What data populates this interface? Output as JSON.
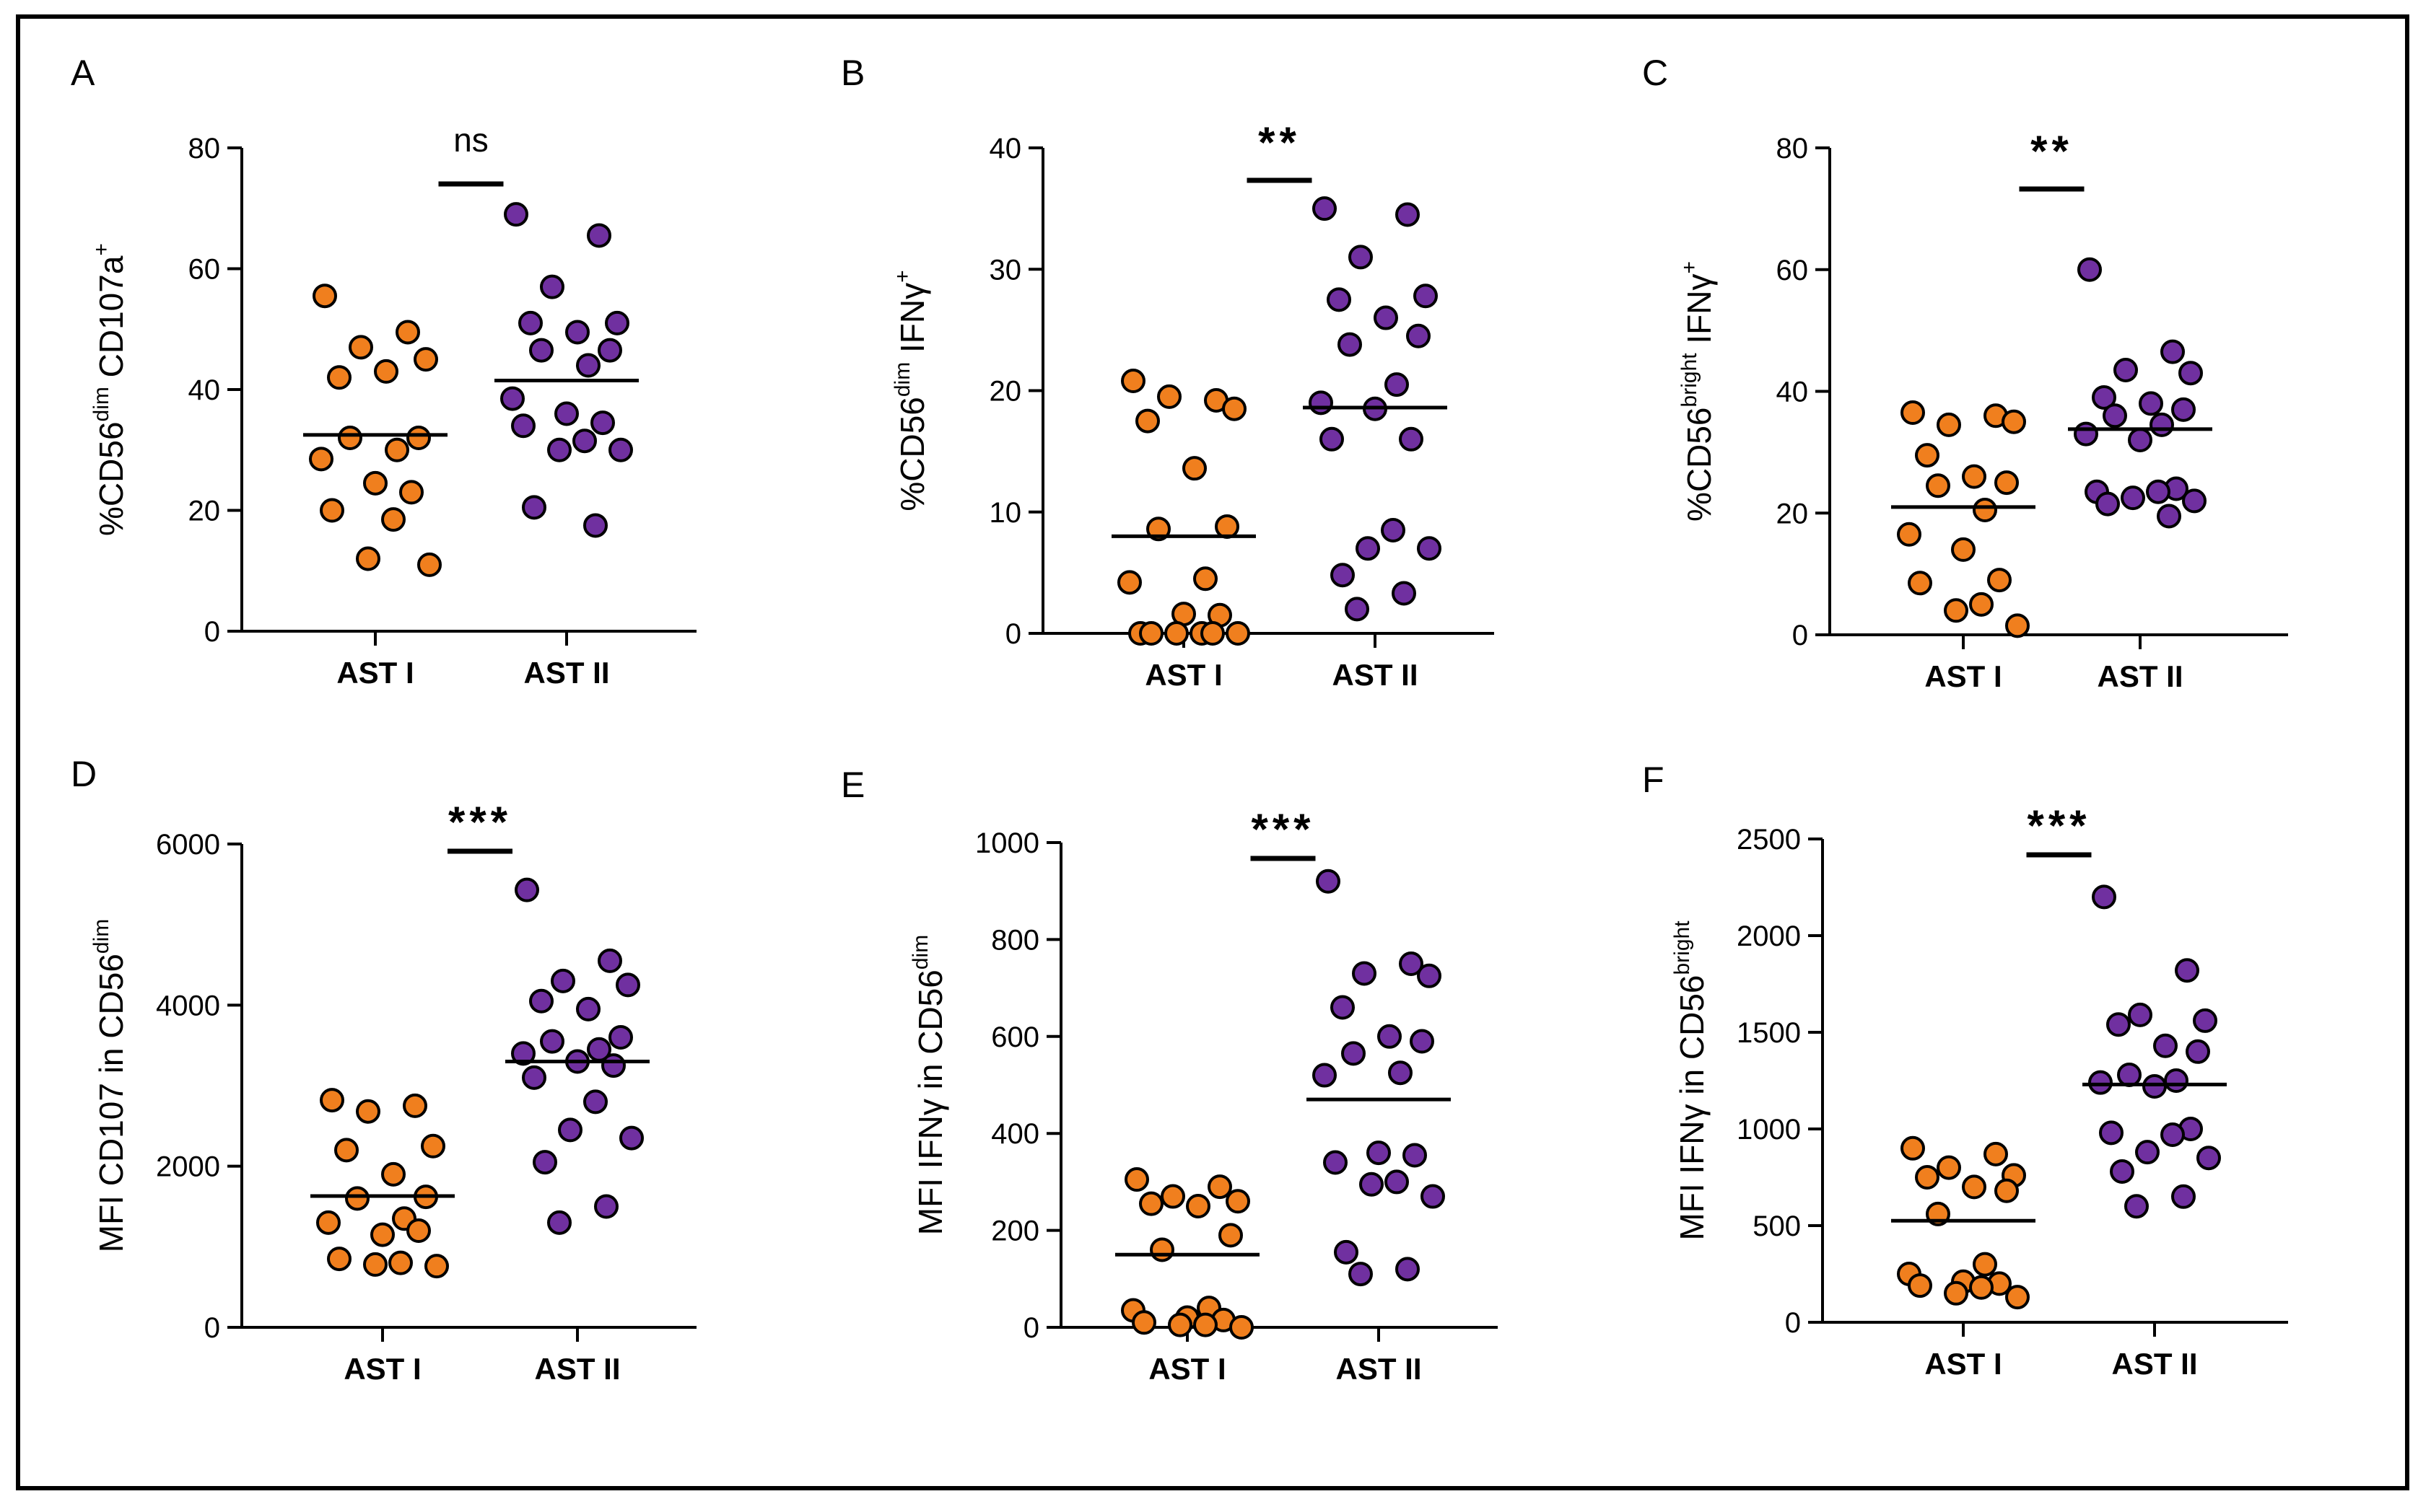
{
  "chart_data": [
    {
      "panel": "A",
      "type": "scatter",
      "title": "",
      "ylabel": {
        "base": "%CD56",
        "sup1": "dim",
        "mid": " CD107a",
        "sup2": "+"
      },
      "categories": [
        "AST I",
        "AST II"
      ],
      "ylim": [
        0,
        80
      ],
      "yticks": [
        0,
        20,
        40,
        60,
        80
      ],
      "ytick_labels": [
        "0",
        "20",
        "40",
        "60",
        "80"
      ],
      "significance": "ns",
      "colors": [
        "#f07f1e",
        "#7030a0"
      ],
      "series": [
        {
          "name": "AST I",
          "mean": 32.5,
          "values": [
            55.5,
            49.5,
            47,
            45,
            42,
            43,
            32,
            32,
            30,
            28.5,
            24.5,
            23,
            20,
            18.5,
            12,
            11
          ]
        },
        {
          "name": "AST II",
          "mean": 41.5,
          "values": [
            69,
            65.5,
            57,
            51,
            51,
            49.5,
            46.5,
            46.5,
            44,
            38.5,
            36,
            34.5,
            34,
            31.5,
            30,
            30,
            20.5,
            17.5
          ]
        }
      ]
    },
    {
      "panel": "B",
      "type": "scatter",
      "title": "",
      "ylabel": {
        "base": "%CD56",
        "sup1": "dim",
        "mid": " IFNγ",
        "sup2": "+"
      },
      "categories": [
        "AST I",
        "AST II"
      ],
      "ylim": [
        0,
        40
      ],
      "yticks": [
        0,
        10,
        20,
        30,
        40
      ],
      "ytick_labels": [
        "0",
        "10",
        "20",
        "30",
        "40"
      ],
      "significance": "**",
      "colors": [
        "#f07f1e",
        "#7030a0"
      ],
      "series": [
        {
          "name": "AST I",
          "mean": 8,
          "values": [
            20.8,
            19.2,
            19.5,
            18.5,
            17.5,
            13.6,
            8.8,
            8.6,
            4.5,
            4.2,
            1.6,
            1.5,
            0,
            0,
            0,
            0,
            0,
            0
          ]
        },
        {
          "name": "AST II",
          "mean": 18.6,
          "values": [
            35,
            34.5,
            31,
            27.8,
            27.5,
            26,
            24.5,
            23.8,
            20.5,
            19,
            18.5,
            16,
            16,
            8.5,
            7,
            7,
            4.8,
            3.3,
            2
          ]
        }
      ]
    },
    {
      "panel": "C",
      "type": "scatter",
      "title": "",
      "ylabel": {
        "base": "%CD56",
        "sup1": "bright",
        "mid": " IFNγ",
        "sup2": "+"
      },
      "categories": [
        "AST I",
        "AST II"
      ],
      "ylim": [
        0,
        80
      ],
      "yticks": [
        0,
        20,
        40,
        60,
        80
      ],
      "ytick_labels": [
        "0",
        "20",
        "40",
        "60",
        "80"
      ],
      "significance": "**",
      "colors": [
        "#f07f1e",
        "#7030a0"
      ],
      "series": [
        {
          "name": "AST I",
          "mean": 21,
          "values": [
            36.5,
            36,
            34.5,
            35,
            29.5,
            26,
            25,
            24.5,
            20.5,
            16.5,
            14,
            9,
            8.5,
            5,
            4,
            1.5
          ]
        },
        {
          "name": "AST II",
          "mean": 33.8,
          "values": [
            60,
            46.5,
            43.5,
            43,
            39,
            38,
            37,
            36,
            34.5,
            33,
            32,
            24,
            23.5,
            23.5,
            22.5,
            22,
            21.5,
            19.5
          ]
        }
      ]
    },
    {
      "panel": "D",
      "type": "scatter",
      "title": "",
      "ylabel": {
        "base": "MFI CD107 in CD56",
        "sup1": "dim",
        "mid": "",
        "sup2": ""
      },
      "categories": [
        "AST I",
        "AST II"
      ],
      "ylim": [
        0,
        6000
      ],
      "yticks": [
        0,
        2000,
        4000,
        6000
      ],
      "ytick_labels": [
        "0",
        "2000",
        "4000",
        "6000"
      ],
      "significance": "***",
      "colors": [
        "#f07f1e",
        "#7030a0"
      ],
      "series": [
        {
          "name": "AST I",
          "mean": 1630,
          "values": [
            2820,
            2750,
            2680,
            2250,
            2200,
            1900,
            1620,
            1600,
            1350,
            1300,
            1150,
            1200,
            850,
            800,
            780,
            760
          ]
        },
        {
          "name": "AST II",
          "mean": 3300,
          "values": [
            5430,
            4550,
            4300,
            4250,
            4050,
            3950,
            3600,
            3550,
            3450,
            3400,
            3300,
            3250,
            3100,
            2800,
            2450,
            2350,
            2050,
            1500,
            1300
          ]
        }
      ]
    },
    {
      "panel": "E",
      "type": "scatter",
      "title": "",
      "ylabel": {
        "base": "MFI IFNγ in CD56",
        "sup1": "dim",
        "mid": "",
        "sup2": ""
      },
      "categories": [
        "AST I",
        "AST II"
      ],
      "ylim": [
        0,
        1000
      ],
      "yticks": [
        0,
        200,
        400,
        600,
        800,
        1000
      ],
      "ytick_labels": [
        "0",
        "200",
        "400",
        "600",
        "800",
        "1000"
      ],
      "significance": "***",
      "colors": [
        "#f07f1e",
        "#7030a0"
      ],
      "series": [
        {
          "name": "AST I",
          "mean": 150,
          "values": [
            305,
            290,
            270,
            260,
            255,
            250,
            190,
            160,
            40,
            35,
            20,
            15,
            10,
            5,
            5,
            0
          ]
        },
        {
          "name": "AST II",
          "mean": 470,
          "values": [
            920,
            750,
            730,
            725,
            660,
            600,
            590,
            565,
            525,
            520,
            360,
            355,
            340,
            300,
            295,
            270,
            155,
            120,
            110
          ]
        }
      ]
    },
    {
      "panel": "F",
      "type": "scatter",
      "title": "",
      "ylabel": {
        "base": "MFI IFNγ in CD56",
        "sup1": "bright",
        "mid": "",
        "sup2": ""
      },
      "categories": [
        "AST I",
        "AST II"
      ],
      "ylim": [
        0,
        2500
      ],
      "yticks": [
        0,
        500,
        1000,
        1500,
        2000,
        2500
      ],
      "ytick_labels": [
        "0",
        "500",
        "1000",
        "1500",
        "2000",
        "2500"
      ],
      "significance": "***",
      "colors": [
        "#f07f1e",
        "#7030a0"
      ],
      "series": [
        {
          "name": "AST I",
          "mean": 525,
          "values": [
            900,
            870,
            800,
            760,
            750,
            700,
            680,
            560,
            300,
            250,
            210,
            200,
            190,
            180,
            150,
            130
          ]
        },
        {
          "name": "AST II",
          "mean": 1230,
          "values": [
            2200,
            1820,
            1590,
            1560,
            1540,
            1430,
            1400,
            1280,
            1250,
            1240,
            1220,
            1000,
            980,
            970,
            880,
            850,
            780,
            650,
            600
          ]
        }
      ]
    }
  ]
}
